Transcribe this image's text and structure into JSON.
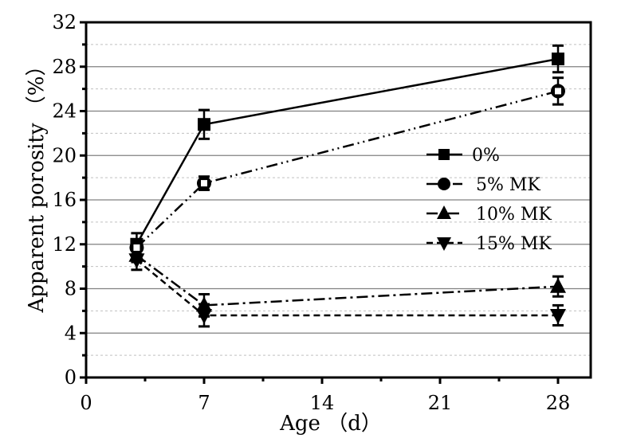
{
  "chart_data": {
    "type": "line",
    "title": "",
    "xlabel": "Age （d）",
    "ylabel": "Apparent porosity （%）",
    "xlim": [
      0,
      30
    ],
    "ylim": [
      0,
      32
    ],
    "x_ticks": [
      0,
      7,
      14,
      21,
      28
    ],
    "x_tick_labels": [
      "0",
      "7",
      "14",
      "21",
      "28"
    ],
    "x_minor_ticks": [
      3.5,
      10.5,
      17.5,
      24.5
    ],
    "y_ticks": [
      0,
      4,
      8,
      12,
      16,
      20,
      24,
      28,
      32
    ],
    "y_tick_labels": [
      "0",
      "4",
      "8",
      "12",
      "16",
      "20",
      "24",
      "28",
      "32"
    ],
    "y_minor_ticks": [
      2,
      6,
      10,
      14,
      18,
      22,
      26,
      30
    ],
    "grid": true,
    "legend_position": "center-right",
    "x": [
      3,
      7,
      28
    ],
    "series": [
      {
        "name": "0%",
        "marker": "square",
        "line_style": "solid",
        "values": [
          12.0,
          22.8,
          28.7
        ],
        "errors": [
          1.0,
          1.3,
          1.2
        ]
      },
      {
        "name": "5% MK",
        "marker": "circle",
        "line_style": "dash-dot-dot",
        "values": [
          11.7,
          17.5,
          25.8
        ],
        "errors": [
          0.6,
          0.6,
          1.2
        ]
      },
      {
        "name": "10% MK",
        "marker": "triangle-up",
        "line_style": "dash-dot",
        "values": [
          11.0,
          6.5,
          8.2
        ],
        "errors": [
          0.6,
          1.0,
          0.9
        ]
      },
      {
        "name": "15% MK",
        "marker": "triangle-down",
        "line_style": "dashed",
        "values": [
          10.6,
          5.6,
          5.6
        ],
        "errors": [
          0.9,
          1.0,
          0.9
        ]
      }
    ],
    "colors": {
      "line": "#000000",
      "major_grid": "#808080",
      "minor_grid": "#c0c0c0"
    }
  }
}
